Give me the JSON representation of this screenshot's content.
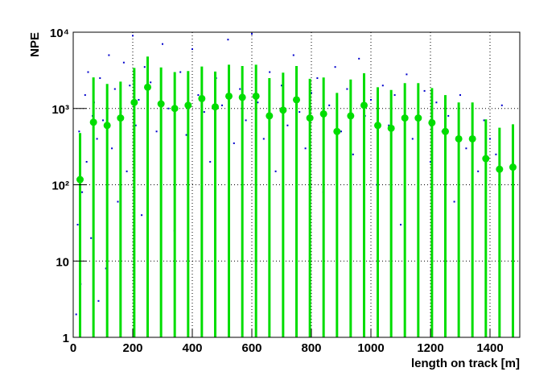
{
  "chart_data": {
    "type": "scatter",
    "x_label": "length on track [m]",
    "y_label": "NPE",
    "xlim": [
      0,
      1500
    ],
    "ylim": [
      1,
      10000
    ],
    "log_y": true,
    "grid": true,
    "xticks": [
      0,
      200,
      400,
      600,
      800,
      1000,
      1200,
      1400
    ],
    "yticks": [
      1,
      10,
      {
        "value": 100,
        "label": "10²"
      },
      {
        "value": 1000,
        "label": "10³"
      },
      {
        "value": 10000,
        "label": "10⁴"
      }
    ],
    "series": [
      {
        "color": "#0000cc",
        "x": [
          10,
          15,
          20,
          25,
          30,
          40,
          45,
          50,
          60,
          65,
          70,
          80,
          85,
          90,
          100,
          110,
          120,
          130,
          140,
          150,
          160,
          170,
          180,
          190,
          200,
          210,
          220,
          230,
          240,
          250,
          260,
          280,
          300,
          320,
          340,
          360,
          380,
          400,
          420,
          440,
          460,
          480,
          500,
          520,
          540,
          560,
          580,
          600,
          620,
          640,
          660,
          680,
          700,
          720,
          740,
          760,
          780,
          800,
          820,
          840,
          860,
          880,
          900,
          920,
          940,
          960,
          980,
          1000,
          1020,
          1040,
          1060,
          1080,
          1100,
          1120,
          1140,
          1160,
          1180,
          1200,
          1220,
          1240,
          1260,
          1280,
          1300,
          1320,
          1340,
          1360,
          1380,
          1400,
          1420,
          1440
        ],
        "values": [
          2,
          30,
          500,
          5,
          80,
          1500,
          200,
          3000,
          20,
          800,
          1200,
          400,
          3,
          2500,
          700,
          8,
          5000,
          300,
          1800,
          60,
          900,
          4000,
          150,
          2000,
          9000,
          600,
          1300,
          40,
          3500,
          800,
          2200,
          500,
          7000,
          1000,
          25,
          3000,
          450,
          6000,
          1500,
          900,
          200,
          2500,
          1100,
          8000,
          350,
          1800,
          700,
          9500,
          1200,
          400,
          3000,
          150,
          2000,
          600,
          5000,
          900,
          300,
          1600,
          2500,
          80,
          1100,
          3500,
          500,
          1800,
          250,
          4500,
          800,
          1300,
          100,
          2000,
          600,
          1500,
          30,
          2800,
          400,
          900,
          1700,
          200,
          1200,
          500,
          800,
          60,
          1500,
          300,
          1000,
          150,
          700,
          400,
          250,
          1100
        ]
      },
      {
        "color": "#00dd00",
        "profile": true,
        "x": [
          23,
          68,
          114,
          159,
          205,
          250,
          295,
          341,
          386,
          432,
          477,
          523,
          568,
          614,
          659,
          705,
          750,
          795,
          841,
          886,
          932,
          977,
          1023,
          1068,
          1114,
          1159,
          1205,
          1250,
          1295,
          1341,
          1386,
          1432,
          1477
        ],
        "values": [
          117,
          660,
          600,
          750,
          1200,
          1900,
          1150,
          1000,
          1100,
          1350,
          1050,
          1450,
          1400,
          1450,
          800,
          950,
          1300,
          750,
          850,
          500,
          800,
          1100,
          600,
          550,
          750,
          750,
          650,
          500,
          400,
          400,
          220,
          160,
          170
        ],
        "errors": [
          360,
          1900,
          1500,
          1500,
          2200,
          2900,
          2300,
          2000,
          2000,
          2200,
          2000,
          2300,
          2200,
          2300,
          1700,
          2000,
          2300,
          1700,
          1700,
          1100,
          1600,
          1800,
          1300,
          1200,
          1400,
          1400,
          1200,
          1000,
          800,
          800,
          500,
          400,
          450
        ]
      }
    ]
  }
}
